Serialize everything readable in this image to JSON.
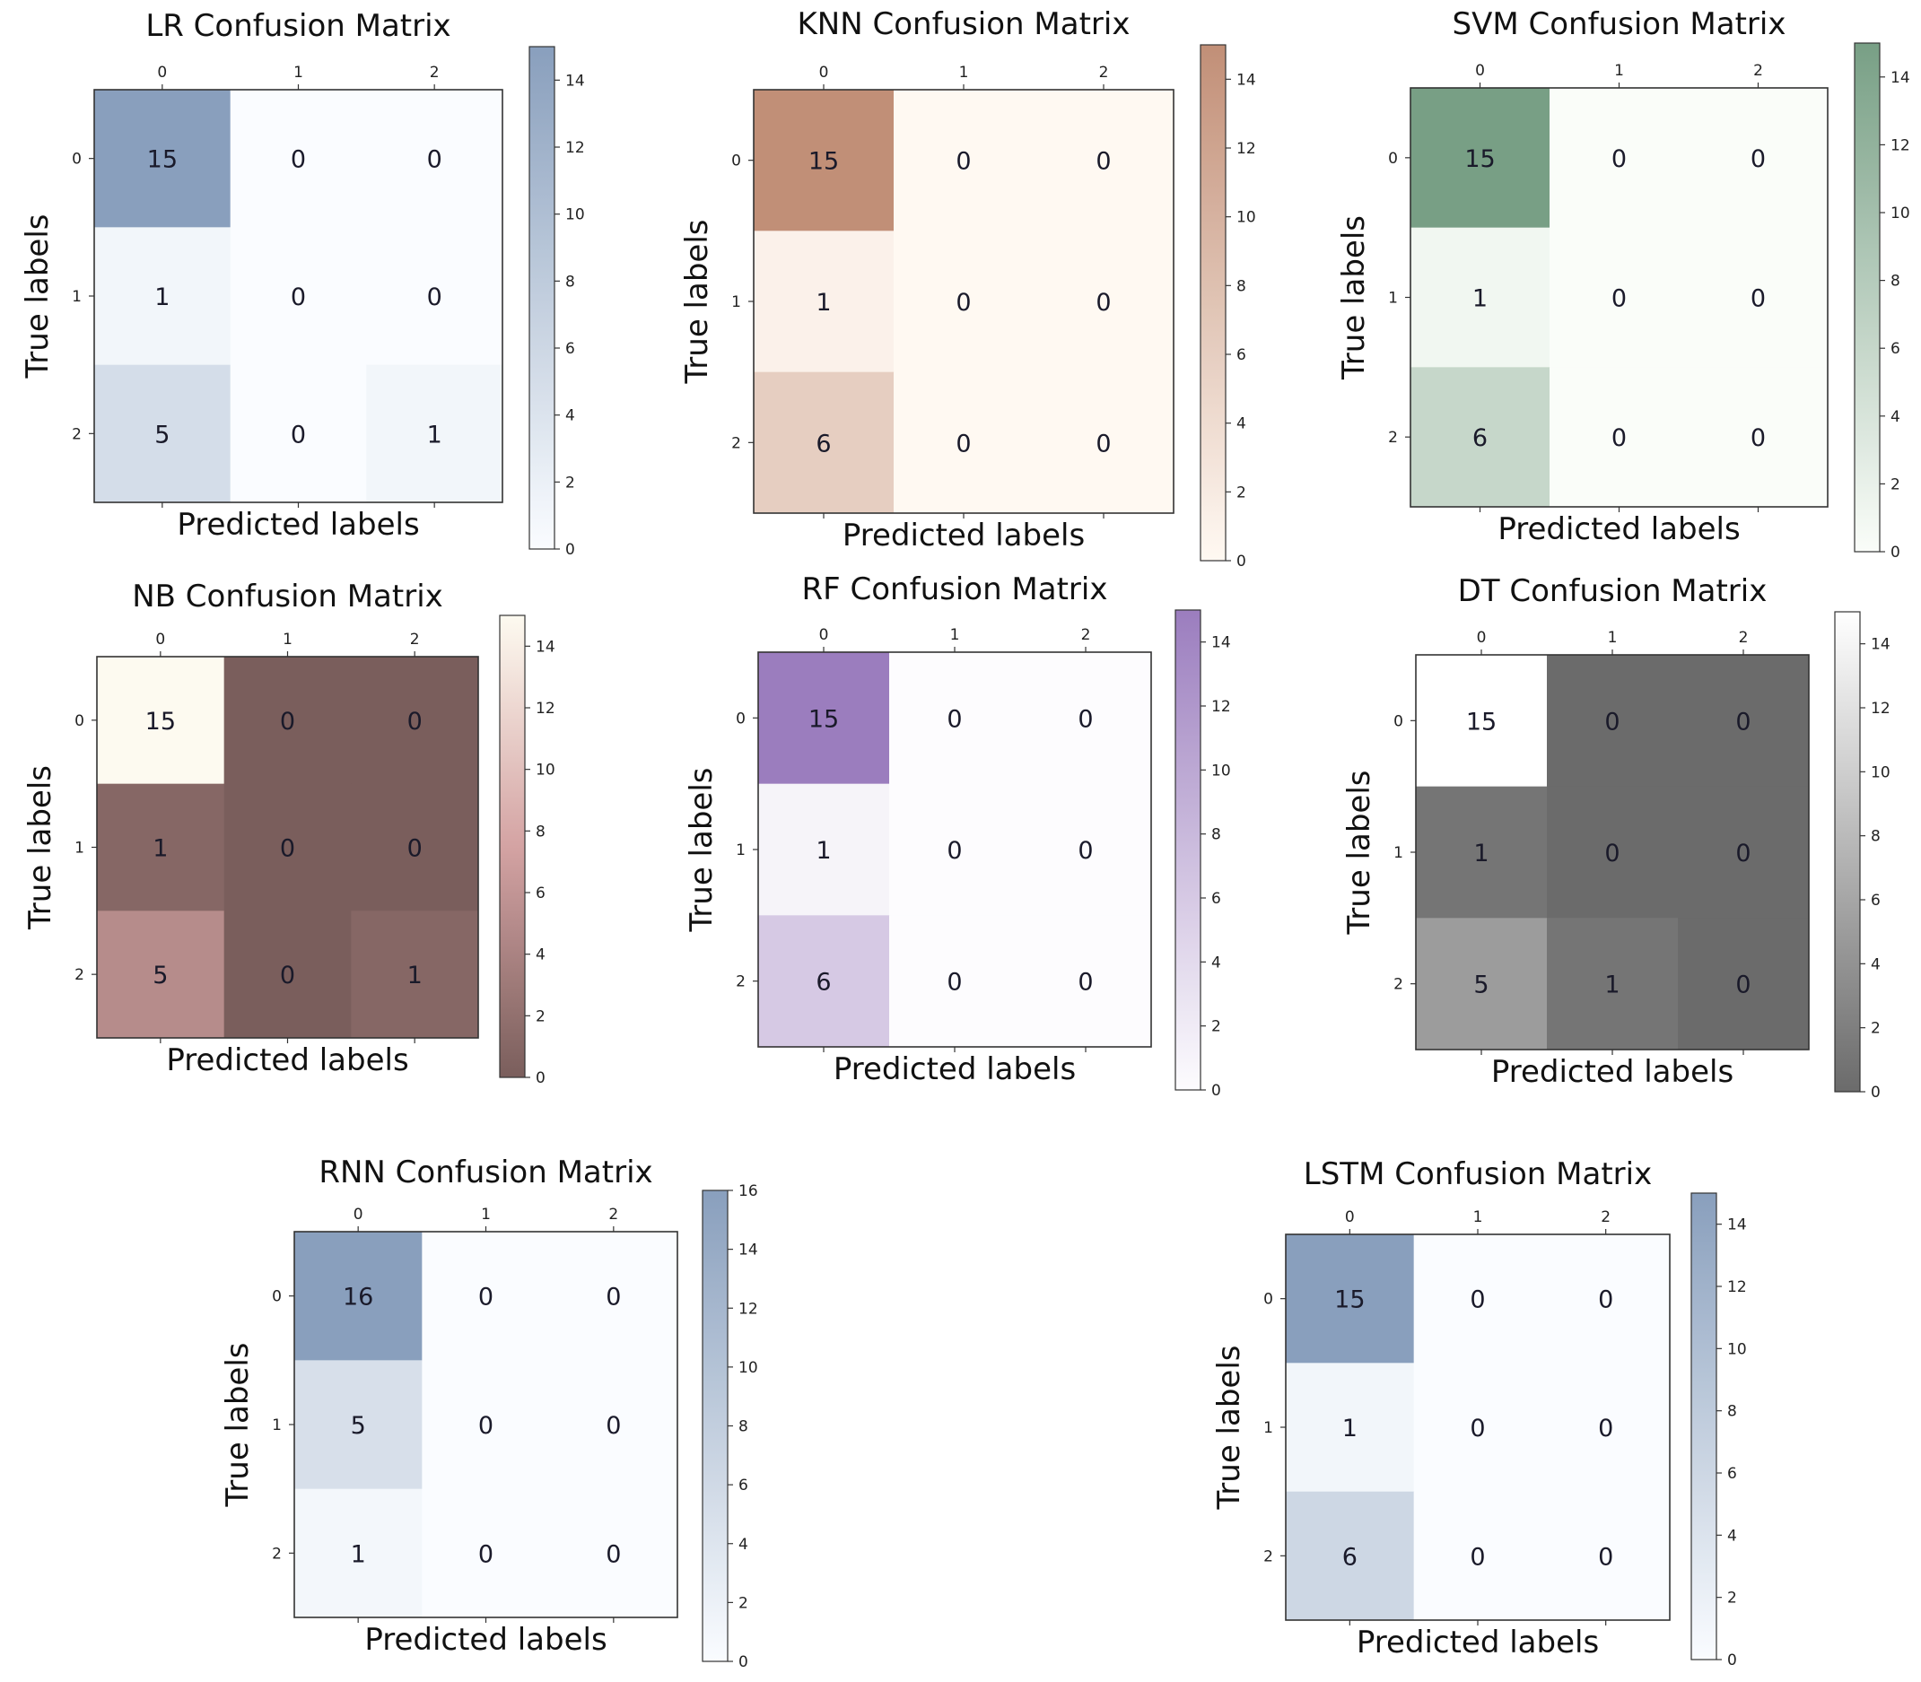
{
  "chart_data": [
    {
      "type": "heatmap",
      "title": "LR Confusion Matrix",
      "xlabel": "Predicted labels",
      "ylabel": "True labels",
      "x_ticks": [
        "0",
        "1",
        "2"
      ],
      "y_ticks": [
        "0",
        "1",
        "2"
      ],
      "values": [
        [
          15,
          0,
          0
        ],
        [
          1,
          0,
          0
        ],
        [
          5,
          0,
          1
        ]
      ],
      "colorbar": {
        "min": 0,
        "max": 15,
        "ticks": [
          "0",
          "2",
          "4",
          "6",
          "8",
          "10",
          "12",
          "14"
        ]
      },
      "colormap": {
        "light": "#f7fbff",
        "dark": "#4a6b99",
        "alpha": 0.65
      }
    },
    {
      "type": "heatmap",
      "title": "KNN Confusion Matrix",
      "xlabel": "Predicted labels",
      "ylabel": "True labels",
      "x_ticks": [
        "0",
        "1",
        "2"
      ],
      "y_ticks": [
        "0",
        "1",
        "2"
      ],
      "values": [
        [
          15,
          0,
          0
        ],
        [
          1,
          0,
          0
        ],
        [
          6,
          0,
          0
        ]
      ],
      "colorbar": {
        "min": 0,
        "max": 15,
        "ticks": [
          "0",
          "2",
          "4",
          "6",
          "8",
          "10",
          "12",
          "14"
        ]
      },
      "colormap": {
        "light": "#fff5eb",
        "dark": "#a0522d",
        "alpha": 0.65
      }
    },
    {
      "type": "heatmap",
      "title": "SVM Confusion Matrix",
      "xlabel": "Predicted labels",
      "ylabel": "True labels",
      "x_ticks": [
        "0",
        "1",
        "2"
      ],
      "y_ticks": [
        "0",
        "1",
        "2"
      ],
      "values": [
        [
          15,
          0,
          0
        ],
        [
          1,
          0,
          0
        ],
        [
          6,
          0,
          0
        ]
      ],
      "colorbar": {
        "min": 0,
        "max": 15,
        "ticks": [
          "0",
          "2",
          "4",
          "6",
          "8",
          "10",
          "12",
          "14"
        ]
      },
      "colormap": {
        "light": "#f7fcf5",
        "dark": "#2f6b44",
        "alpha": 0.65
      }
    },
    {
      "type": "heatmap",
      "title": "NB Confusion Matrix",
      "xlabel": "Predicted labels",
      "ylabel": "True labels",
      "x_ticks": [
        "0",
        "1",
        "2"
      ],
      "y_ticks": [
        "0",
        "1",
        "2"
      ],
      "values": [
        [
          15,
          0,
          0
        ],
        [
          1,
          0,
          0
        ],
        [
          5,
          0,
          1
        ]
      ],
      "colorbar": {
        "min": 0,
        "max": 15,
        "ticks": [
          "0",
          "2",
          "4",
          "6",
          "8",
          "10",
          "12",
          "14"
        ]
      },
      "colormap": {
        "light": "#fdfaf0",
        "dark": "#7a5e5c",
        "alpha": 1.0,
        "mid": "#d4a3a3"
      }
    },
    {
      "type": "heatmap",
      "title": "RF Confusion Matrix",
      "xlabel": "Predicted labels",
      "ylabel": "True labels",
      "x_ticks": [
        "0",
        "1",
        "2"
      ],
      "y_ticks": [
        "0",
        "1",
        "2"
      ],
      "values": [
        [
          15,
          0,
          0
        ],
        [
          1,
          0,
          0
        ],
        [
          6,
          0,
          0
        ]
      ],
      "colorbar": {
        "min": 0,
        "max": 15,
        "ticks": [
          "0",
          "2",
          "4",
          "6",
          "8",
          "10",
          "12",
          "14"
        ]
      },
      "colormap": {
        "light": "#fcfbfd",
        "dark": "#7a52a8",
        "alpha": 0.75
      }
    },
    {
      "type": "heatmap",
      "title": "DT Confusion Matrix",
      "xlabel": "Predicted labels",
      "ylabel": "True labels",
      "x_ticks": [
        "0",
        "1",
        "2"
      ],
      "y_ticks": [
        "0",
        "1",
        "2"
      ],
      "values": [
        [
          15,
          0,
          0
        ],
        [
          1,
          0,
          0
        ],
        [
          5,
          1,
          0
        ]
      ],
      "colorbar": {
        "min": 0,
        "max": 15,
        "ticks": [
          "0",
          "2",
          "4",
          "6",
          "8",
          "10",
          "12",
          "14"
        ]
      },
      "colormap": {
        "light": "#ffffff",
        "dark": "#6b6b6b",
        "alpha": 1.0
      }
    },
    {
      "type": "heatmap",
      "title": "RNN Confusion Matrix",
      "xlabel": "Predicted labels",
      "ylabel": "True labels",
      "x_ticks": [
        "0",
        "1",
        "2"
      ],
      "y_ticks": [
        "0",
        "1",
        "2"
      ],
      "values": [
        [
          16,
          0,
          0
        ],
        [
          5,
          0,
          0
        ],
        [
          1,
          0,
          0
        ]
      ],
      "colorbar": {
        "min": 0,
        "max": 16,
        "ticks": [
          "0",
          "2",
          "4",
          "6",
          "8",
          "10",
          "12",
          "14",
          "16"
        ]
      },
      "colormap": {
        "light": "#f7fbff",
        "dark": "#4a6b99",
        "alpha": 0.65
      }
    },
    {
      "type": "heatmap",
      "title": "LSTM Confusion Matrix",
      "xlabel": "Predicted labels",
      "ylabel": "True labels",
      "x_ticks": [
        "0",
        "1",
        "2"
      ],
      "y_ticks": [
        "0",
        "1",
        "2"
      ],
      "values": [
        [
          15,
          0,
          0
        ],
        [
          1,
          0,
          0
        ],
        [
          6,
          0,
          0
        ]
      ],
      "colorbar": {
        "min": 0,
        "max": 15,
        "ticks": [
          "0",
          "2",
          "4",
          "6",
          "8",
          "10",
          "12",
          "14"
        ]
      },
      "colormap": {
        "light": "#f7fbff",
        "dark": "#4a6b99",
        "alpha": 0.65
      }
    }
  ]
}
